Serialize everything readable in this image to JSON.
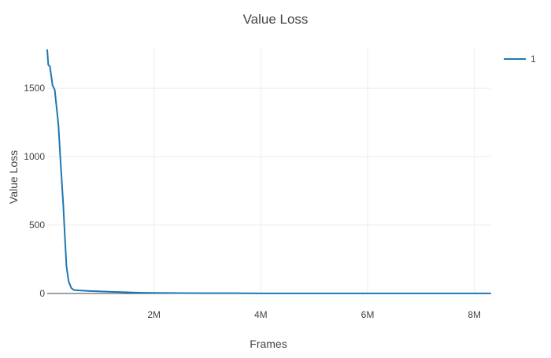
{
  "chart_data": {
    "type": "line",
    "title": "Value Loss",
    "xlabel": "Frames",
    "ylabel": "Value Loss",
    "xlim": [
      0,
      8300000
    ],
    "ylim": [
      0,
      1800
    ],
    "x_ticks": [
      {
        "value": 2000000,
        "label": "2M"
      },
      {
        "value": 4000000,
        "label": "4M"
      },
      {
        "value": 6000000,
        "label": "6M"
      },
      {
        "value": 8000000,
        "label": "8M"
      }
    ],
    "y_ticks": [
      {
        "value": 0,
        "label": "0"
      },
      {
        "value": 500,
        "label": "500"
      },
      {
        "value": 1000,
        "label": "1000"
      },
      {
        "value": 1500,
        "label": "1500"
      }
    ],
    "grid": true,
    "legend": {
      "placement": "top-right"
    },
    "series": [
      {
        "name": "1",
        "color": "#1f77b4",
        "x": [
          0,
          20000,
          50000,
          100000,
          140000,
          170000,
          210000,
          250000,
          300000,
          330000,
          360000,
          400000,
          450000,
          500000,
          600000,
          700000,
          800000,
          1000000,
          1200000,
          1400000,
          1600000,
          1800000,
          2000000,
          2500000,
          3000000,
          3500000,
          4000000,
          5000000,
          6000000,
          7000000,
          8000000,
          8300000
        ],
        "y": [
          1780,
          1670,
          1660,
          1520,
          1490,
          1380,
          1230,
          960,
          650,
          420,
          200,
          90,
          40,
          25,
          22,
          20,
          18,
          15,
          12,
          10,
          7,
          5,
          4,
          3,
          2,
          2,
          1,
          1,
          1,
          1,
          1,
          1
        ]
      }
    ]
  }
}
